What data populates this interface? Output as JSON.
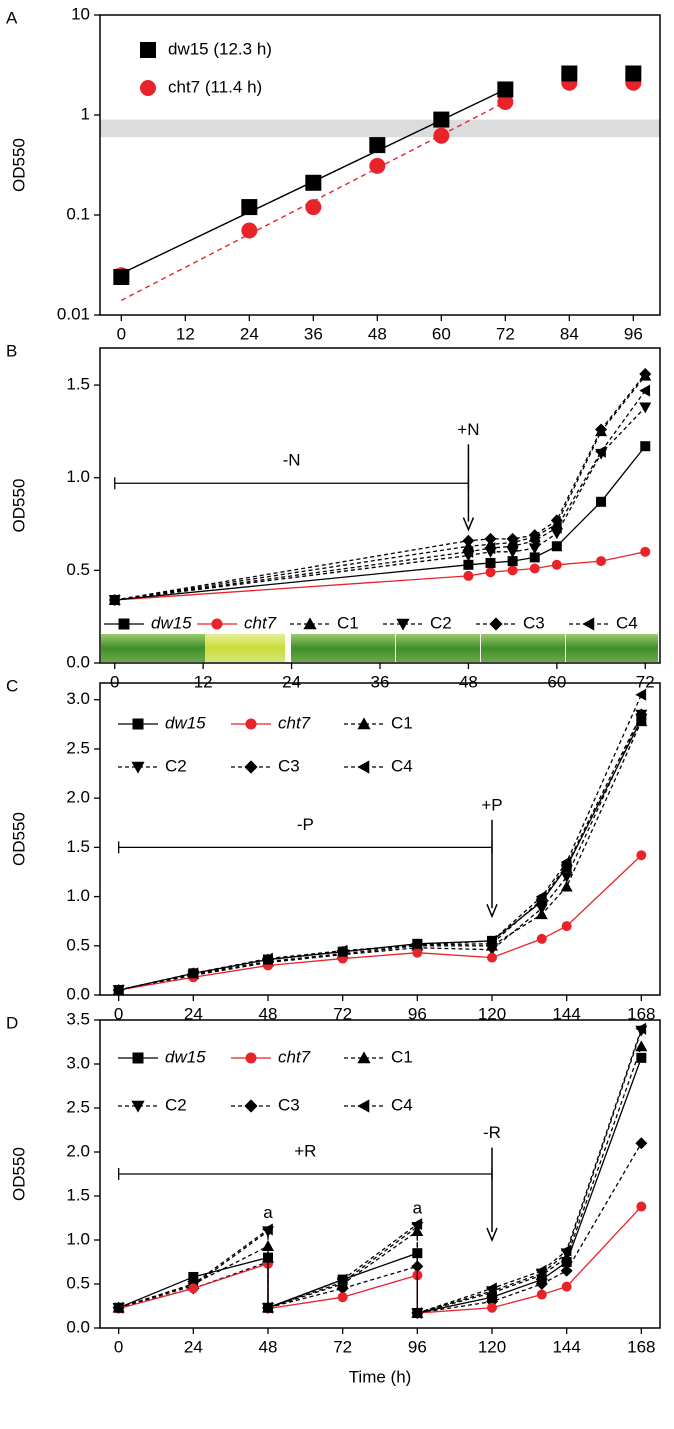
{
  "chart_data": [
    {
      "type": "scatter",
      "panel_label": "A",
      "y_label": "OD550",
      "log_y": true,
      "xlim": [
        -4,
        101
      ],
      "ylim": [
        0.01,
        10
      ],
      "xticks": [
        0,
        12,
        24,
        36,
        48,
        60,
        72,
        84,
        96
      ],
      "yticks": [
        0.01,
        0.1,
        1,
        10
      ],
      "band": [
        0.6,
        0.9
      ],
      "band_color": "#dcdcdc",
      "legend_columns": 1,
      "x": [
        0,
        24,
        36,
        48,
        60,
        72,
        84,
        96
      ],
      "series": [
        {
          "name": "dw15 (12.3 h)",
          "color": "#000000",
          "marker": "square",
          "values": [
            0.024,
            0.12,
            0.21,
            0.5,
            0.9,
            1.8,
            2.6,
            2.6
          ],
          "fit": {
            "x": [
              0,
              72
            ],
            "values": [
              0.026,
              1.8
            ],
            "dash": false
          }
        },
        {
          "name": "cht7 (11.4 h)",
          "color": "#e8232a",
          "marker": "circle",
          "values": [
            0.025,
            0.07,
            0.12,
            0.31,
            0.62,
            1.35,
            2.1,
            2.1
          ],
          "fit": {
            "x": [
              0,
              72
            ],
            "values": [
              0.014,
              1.35
            ],
            "dash": true
          }
        }
      ]
    },
    {
      "type": "line",
      "panel_label": "B",
      "y_label": "OD550",
      "xlim": [
        -2,
        74
      ],
      "ylim": [
        0,
        1.7
      ],
      "xticks": [
        0,
        12,
        24,
        36,
        48,
        60,
        72
      ],
      "yticks": [
        {
          "value": 0,
          "label": "0.0"
        },
        0.5,
        {
          "value": 1,
          "label": "1.0"
        },
        1.5
      ],
      "legend_columns": 6,
      "x": [
        0,
        48,
        51,
        54,
        57,
        60,
        66,
        72
      ],
      "series": [
        {
          "name": "dw15",
          "color": "#000000",
          "marker": "square",
          "dash": false,
          "values": [
            0.34,
            0.53,
            0.54,
            0.55,
            0.57,
            0.63,
            0.87,
            1.17
          ]
        },
        {
          "name": "cht7",
          "color": "#e8232a",
          "marker": "circle",
          "dash": false,
          "values": [
            0.34,
            0.47,
            0.49,
            0.5,
            0.51,
            0.53,
            0.55,
            0.6
          ]
        },
        {
          "name": "C1",
          "color": "#000000",
          "marker": "triangle-up",
          "dash": true,
          "values": [
            0.34,
            0.63,
            0.64,
            0.65,
            0.68,
            0.75,
            1.25,
            1.55
          ]
        },
        {
          "name": "C2",
          "color": "#000000",
          "marker": "triangle-down",
          "dash": true,
          "values": [
            0.34,
            0.58,
            0.6,
            0.6,
            0.62,
            0.7,
            1.13,
            1.38
          ]
        },
        {
          "name": "C3",
          "color": "#000000",
          "marker": "diamond",
          "dash": true,
          "values": [
            0.34,
            0.66,
            0.67,
            0.67,
            0.69,
            0.77,
            1.26,
            1.56
          ]
        },
        {
          "name": "C4",
          "color": "#000000",
          "marker": "triangle-left",
          "dash": true,
          "values": [
            0.34,
            0.6,
            0.62,
            0.63,
            0.66,
            0.73,
            1.14,
            1.47
          ]
        }
      ],
      "brackets": [
        {
          "label": "-N",
          "x": [
            0,
            48
          ],
          "y": 0.97
        }
      ],
      "arrows": [
        {
          "label": "+N",
          "x": 48,
          "from": 1.18,
          "to": 0.72
        }
      ]
    },
    {
      "type": "line",
      "panel_label": "C",
      "y_label": "OD550",
      "xlim": [
        -6,
        174
      ],
      "ylim": [
        0,
        3.17
      ],
      "xticks": [
        0,
        24,
        48,
        72,
        96,
        120,
        144,
        168
      ],
      "yticks": [
        {
          "value": 0,
          "label": "0.0"
        },
        0.5,
        {
          "value": 1,
          "label": "1.0"
        },
        1.5,
        {
          "value": 2,
          "label": "2.0"
        },
        2.5,
        {
          "value": 3,
          "label": "3.0"
        }
      ],
      "legend_columns": 3,
      "x": [
        0,
        24,
        48,
        72,
        96,
        120,
        136,
        144,
        168
      ],
      "series": [
        {
          "name": "dw15",
          "color": "#000000",
          "marker": "square",
          "dash": false,
          "values": [
            0.05,
            0.22,
            0.36,
            0.44,
            0.52,
            0.55,
            0.95,
            1.3,
            2.8
          ]
        },
        {
          "name": "cht7",
          "color": "#e8232a",
          "marker": "circle",
          "dash": false,
          "values": [
            0.05,
            0.18,
            0.3,
            0.37,
            0.43,
            0.38,
            0.57,
            0.7,
            1.42
          ]
        },
        {
          "name": "C1",
          "color": "#000000",
          "marker": "triangle-up",
          "dash": true,
          "values": [
            0.05,
            0.21,
            0.34,
            0.42,
            0.5,
            0.5,
            0.82,
            1.1,
            2.78
          ]
        },
        {
          "name": "C2",
          "color": "#000000",
          "marker": "triangle-down",
          "dash": true,
          "values": [
            0.05,
            0.2,
            0.33,
            0.41,
            0.48,
            0.46,
            0.88,
            1.2,
            2.85
          ]
        },
        {
          "name": "C3",
          "color": "#000000",
          "marker": "diamond",
          "dash": true,
          "values": [
            0.05,
            0.22,
            0.36,
            0.44,
            0.51,
            0.52,
            0.97,
            1.32,
            2.85
          ]
        },
        {
          "name": "C4",
          "color": "#000000",
          "marker": "triangle-left",
          "dash": true,
          "values": [
            0.05,
            0.22,
            0.37,
            0.45,
            0.51,
            0.55,
            1.0,
            1.35,
            3.05
          ]
        }
      ],
      "brackets": [
        {
          "label": "-P",
          "x": [
            0,
            120
          ],
          "y": 1.5
        }
      ],
      "arrows": [
        {
          "label": "+P",
          "x": 120,
          "from": 1.78,
          "to": 0.8
        }
      ]
    },
    {
      "type": "line",
      "panel_label": "D",
      "y_label": "OD550",
      "x_label": "Time (h)",
      "xlim": [
        -6,
        174
      ],
      "ylim": [
        0,
        3.5
      ],
      "xticks": [
        0,
        24,
        48,
        72,
        96,
        120,
        144,
        168
      ],
      "yticks": [
        {
          "value": 0,
          "label": "0.0"
        },
        0.5,
        {
          "value": 1,
          "label": "1.0"
        },
        1.5,
        {
          "value": 2,
          "label": "2.0"
        },
        2.5,
        {
          "value": 3,
          "label": "3.0"
        },
        3.5
      ],
      "legend_columns": 3,
      "x": [
        0,
        24,
        48,
        48,
        72,
        96,
        96,
        120,
        136,
        144,
        168
      ],
      "series": [
        {
          "name": "dw15",
          "color": "#000000",
          "marker": "square",
          "dash": false,
          "values": [
            0.23,
            0.58,
            0.8,
            0.23,
            0.55,
            0.85,
            0.17,
            0.35,
            0.55,
            0.75,
            3.07
          ]
        },
        {
          "name": "cht7",
          "color": "#e8232a",
          "marker": "circle",
          "dash": false,
          "values": [
            0.22,
            0.45,
            0.73,
            0.22,
            0.35,
            0.6,
            0.17,
            0.23,
            0.38,
            0.47,
            1.38
          ]
        },
        {
          "name": "C1",
          "color": "#000000",
          "marker": "triangle-up",
          "dash": true,
          "values": [
            0.23,
            0.5,
            0.93,
            0.23,
            0.5,
            1.1,
            0.17,
            0.4,
            0.6,
            0.8,
            3.2
          ]
        },
        {
          "name": "C2",
          "color": "#000000",
          "marker": "triangle-down",
          "dash": true,
          "values": [
            0.23,
            0.48,
            1.1,
            0.23,
            0.52,
            1.15,
            0.17,
            0.42,
            0.62,
            0.85,
            3.38
          ]
        },
        {
          "name": "C3",
          "color": "#000000",
          "marker": "diamond",
          "dash": true,
          "values": [
            0.23,
            0.45,
            0.75,
            0.23,
            0.45,
            0.7,
            0.17,
            0.3,
            0.5,
            0.65,
            2.1
          ]
        },
        {
          "name": "C4",
          "color": "#000000",
          "marker": "triangle-left",
          "dash": true,
          "values": [
            0.23,
            0.5,
            1.12,
            0.23,
            0.55,
            1.18,
            0.17,
            0.45,
            0.65,
            0.88,
            3.4
          ]
        }
      ],
      "brackets": [
        {
          "label": "+R",
          "x": [
            0,
            120
          ],
          "y": 1.75
        }
      ],
      "arrows": [
        {
          "label": "-R",
          "x": 120,
          "from": 2.05,
          "to": 1.0
        }
      ],
      "notes": [
        {
          "text": "a",
          "x": 48,
          "y": 1.3
        },
        {
          "text": "a",
          "x": 96,
          "y": 1.35
        }
      ]
    }
  ]
}
